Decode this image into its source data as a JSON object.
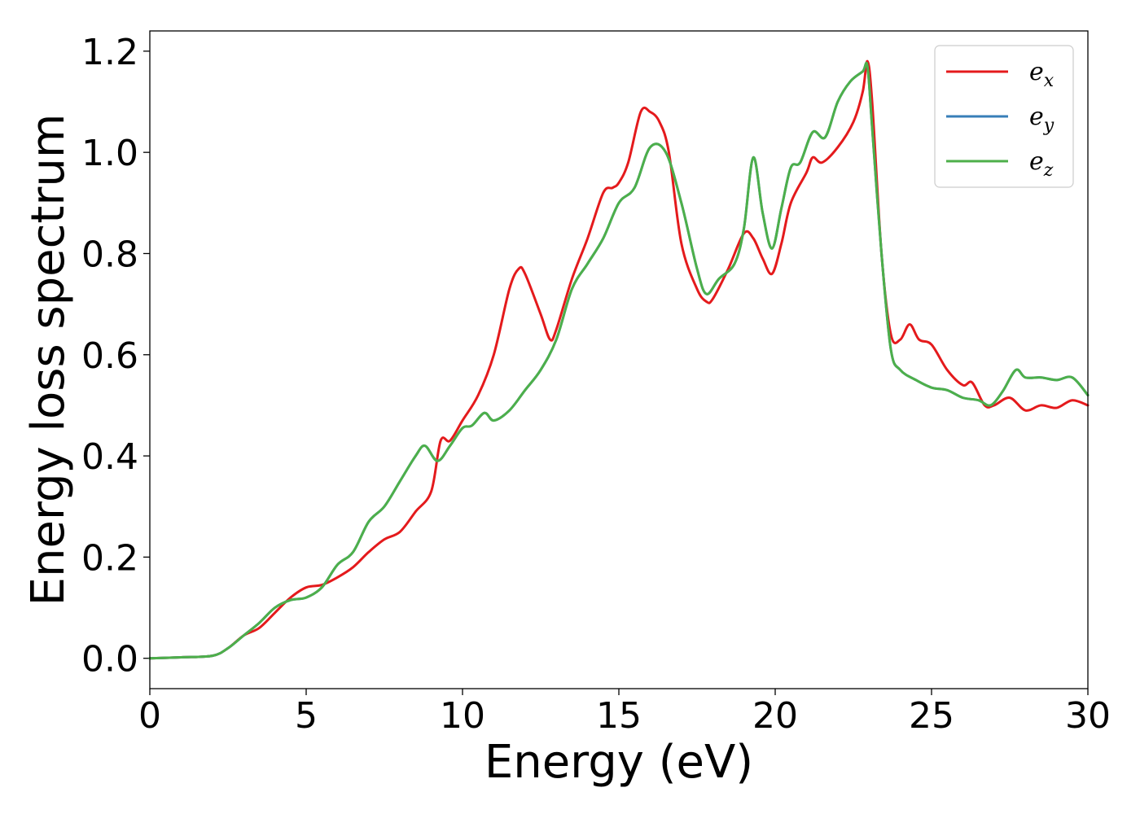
{
  "chart_data": {
    "type": "line",
    "title": "",
    "xlabel": "Energy (eV)",
    "ylabel": "Energy loss spectrum",
    "xlim": [
      0,
      30
    ],
    "ylim": [
      -0.06,
      1.24
    ],
    "xticks": [
      0,
      5,
      10,
      15,
      20,
      25,
      30
    ],
    "xtick_labels": [
      "0",
      "5",
      "10",
      "15",
      "20",
      "25",
      "30"
    ],
    "yticks": [
      0.0,
      0.2,
      0.4,
      0.6,
      0.8,
      1.0,
      1.2
    ],
    "ytick_labels": [
      "0.0",
      "0.2",
      "0.4",
      "0.6",
      "0.8",
      "1.0",
      "1.2"
    ],
    "grid": false,
    "legend_position": "top-right",
    "series": [
      {
        "name": "e_x",
        "label_main": "e",
        "label_sub": "x",
        "color": "#e41a1c",
        "x": [
          0,
          1,
          2,
          2.5,
          3,
          3.5,
          4,
          4.5,
          5,
          5.5,
          6,
          6.5,
          7,
          7.5,
          8,
          8.5,
          9,
          9.3,
          9.6,
          10,
          10.5,
          11,
          11.5,
          11.8,
          12,
          12.5,
          12.8,
          13,
          13.5,
          14,
          14.5,
          14.8,
          15,
          15.3,
          15.7,
          16,
          16.3,
          16.6,
          17,
          17.5,
          17.8,
          18,
          18.5,
          19,
          19.3,
          19.6,
          19.9,
          20.2,
          20.5,
          21,
          21.2,
          21.5,
          22,
          22.5,
          22.8,
          22.95,
          23.1,
          23.4,
          23.7,
          24,
          24.3,
          24.6,
          25,
          25.5,
          26,
          26.3,
          26.7,
          27,
          27.5,
          28,
          28.5,
          29,
          29.5,
          30
        ],
        "y": [
          0.0,
          0.002,
          0.005,
          0.02,
          0.045,
          0.06,
          0.09,
          0.12,
          0.14,
          0.145,
          0.16,
          0.18,
          0.21,
          0.235,
          0.25,
          0.29,
          0.33,
          0.43,
          0.43,
          0.47,
          0.52,
          0.6,
          0.73,
          0.77,
          0.76,
          0.68,
          0.63,
          0.65,
          0.75,
          0.83,
          0.92,
          0.93,
          0.94,
          0.98,
          1.08,
          1.08,
          1.06,
          1.0,
          0.82,
          0.73,
          0.705,
          0.71,
          0.77,
          0.84,
          0.83,
          0.79,
          0.76,
          0.82,
          0.9,
          0.96,
          0.99,
          0.98,
          1.01,
          1.06,
          1.12,
          1.18,
          1.1,
          0.8,
          0.64,
          0.63,
          0.66,
          0.63,
          0.62,
          0.57,
          0.54,
          0.545,
          0.5,
          0.5,
          0.515,
          0.49,
          0.5,
          0.495,
          0.51,
          0.5
        ]
      },
      {
        "name": "e_y",
        "label_main": "e",
        "label_sub": "y",
        "color": "#377eb8",
        "x": [
          0,
          1,
          2,
          2.5,
          3,
          3.5,
          4,
          4.5,
          5,
          5.5,
          6,
          6.5,
          7,
          7.5,
          8,
          8.5,
          8.8,
          9.2,
          9.6,
          10,
          10.3,
          10.7,
          11,
          11.5,
          12,
          12.5,
          13,
          13.5,
          14,
          14.5,
          15,
          15.5,
          16,
          16.5,
          17,
          17.5,
          17.8,
          18.2,
          18.7,
          19,
          19.3,
          19.6,
          19.9,
          20.2,
          20.5,
          20.8,
          21.2,
          21.6,
          22,
          22.4,
          22.8,
          22.95,
          23.1,
          23.4,
          23.7,
          24,
          24.5,
          25,
          25.5,
          26,
          26.5,
          26.8,
          27,
          27.3,
          27.7,
          28,
          28.5,
          29,
          29.5,
          30
        ],
        "y": [
          0.0,
          0.002,
          0.005,
          0.02,
          0.045,
          0.07,
          0.1,
          0.115,
          0.12,
          0.14,
          0.185,
          0.21,
          0.27,
          0.3,
          0.35,
          0.4,
          0.42,
          0.39,
          0.42,
          0.455,
          0.46,
          0.485,
          0.47,
          0.49,
          0.53,
          0.57,
          0.63,
          0.73,
          0.78,
          0.83,
          0.9,
          0.93,
          1.01,
          1.0,
          0.9,
          0.77,
          0.72,
          0.75,
          0.78,
          0.85,
          0.99,
          0.88,
          0.81,
          0.89,
          0.97,
          0.98,
          1.04,
          1.03,
          1.1,
          1.14,
          1.16,
          1.17,
          1.05,
          0.8,
          0.61,
          0.57,
          0.55,
          0.535,
          0.53,
          0.515,
          0.51,
          0.5,
          0.505,
          0.53,
          0.57,
          0.555,
          0.555,
          0.55,
          0.555,
          0.52
        ]
      },
      {
        "name": "e_z",
        "label_main": "e",
        "label_sub": "z",
        "color": "#4daf4a",
        "x": [
          0,
          1,
          2,
          2.5,
          3,
          3.5,
          4,
          4.5,
          5,
          5.5,
          6,
          6.5,
          7,
          7.5,
          8,
          8.5,
          8.8,
          9.2,
          9.6,
          10,
          10.3,
          10.7,
          11,
          11.5,
          12,
          12.5,
          13,
          13.5,
          14,
          14.5,
          15,
          15.5,
          16,
          16.5,
          17,
          17.5,
          17.8,
          18.2,
          18.7,
          19,
          19.3,
          19.6,
          19.9,
          20.2,
          20.5,
          20.8,
          21.2,
          21.6,
          22,
          22.4,
          22.8,
          22.95,
          23.1,
          23.4,
          23.7,
          24,
          24.5,
          25,
          25.5,
          26,
          26.5,
          26.8,
          27,
          27.3,
          27.7,
          28,
          28.5,
          29,
          29.5,
          30
        ],
        "y": [
          0.0,
          0.002,
          0.005,
          0.02,
          0.045,
          0.07,
          0.1,
          0.115,
          0.12,
          0.14,
          0.185,
          0.21,
          0.27,
          0.3,
          0.35,
          0.4,
          0.42,
          0.39,
          0.42,
          0.455,
          0.46,
          0.485,
          0.47,
          0.49,
          0.53,
          0.57,
          0.63,
          0.73,
          0.78,
          0.83,
          0.9,
          0.93,
          1.01,
          1.0,
          0.9,
          0.77,
          0.72,
          0.75,
          0.78,
          0.85,
          0.99,
          0.88,
          0.81,
          0.89,
          0.97,
          0.98,
          1.04,
          1.03,
          1.1,
          1.14,
          1.16,
          1.17,
          1.05,
          0.8,
          0.61,
          0.57,
          0.55,
          0.535,
          0.53,
          0.515,
          0.51,
          0.5,
          0.505,
          0.53,
          0.57,
          0.555,
          0.555,
          0.55,
          0.555,
          0.52
        ]
      }
    ]
  }
}
